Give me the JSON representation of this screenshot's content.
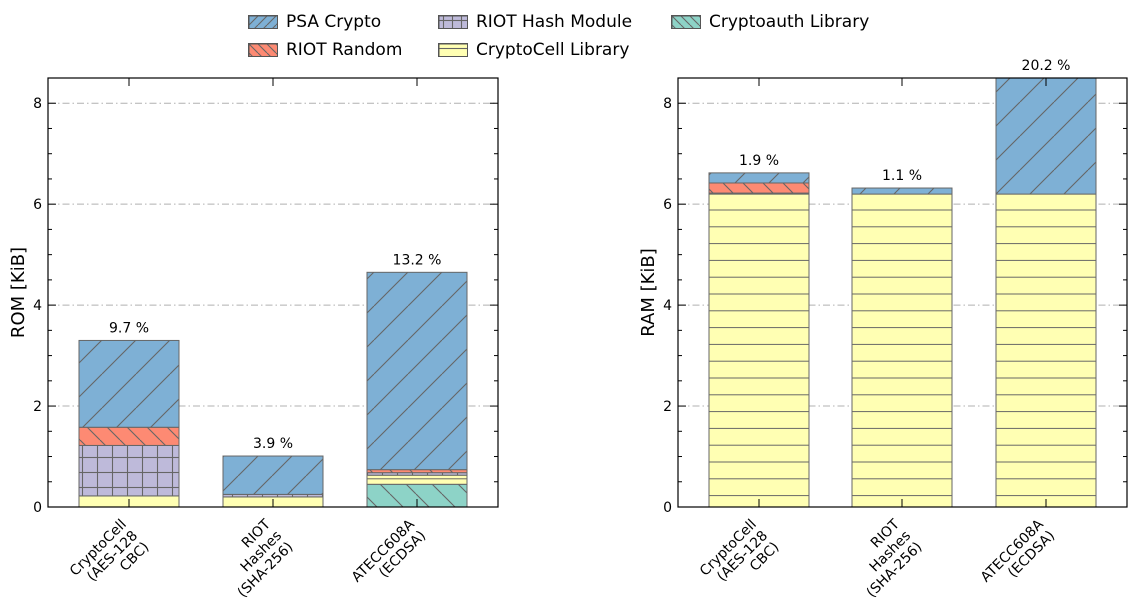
{
  "colors": {
    "psa": "#7eb0d5",
    "random": "#fd8a73",
    "hash": "#bebada",
    "cryptocell": "#ffffb3",
    "cryptoauth": "#8dd3c7"
  },
  "legend": [
    {
      "key": "psa",
      "label": "PSA Crypto",
      "pattern": "diag-up"
    },
    {
      "key": "random",
      "label": "RIOT Random",
      "pattern": "diag-down"
    },
    {
      "key": "hash",
      "label": "RIOT Hash Module",
      "pattern": "grid"
    },
    {
      "key": "cryptocell",
      "label": "CryptoCell Library",
      "pattern": "horiz"
    },
    {
      "key": "cryptoauth",
      "label": "Cryptoauth Library",
      "pattern": "diag-down"
    }
  ],
  "chart_data": [
    {
      "type": "bar",
      "stacked": true,
      "ylabel": "ROM [KiB]",
      "ylim": [
        0,
        8.5
      ],
      "yticks": [
        "0",
        "2",
        "4",
        "6",
        "8"
      ],
      "grid": "horizontal dash-dot",
      "categories": [
        "CryptoCell\n(AES-128\nCBC)",
        "RIOT\nHashes\n(SHA-256)",
        "ATECC608A\n(ECDSA)"
      ],
      "series": [
        {
          "key": "cryptoauth",
          "name": "Cryptoauth Library",
          "values": [
            0,
            0,
            0.45
          ]
        },
        {
          "key": "cryptocell",
          "name": "CryptoCell Library",
          "values": [
            0.22,
            0.2,
            0.18
          ]
        },
        {
          "key": "hash",
          "name": "RIOT Hash Module",
          "values": [
            1.0,
            0.05,
            0.05
          ]
        },
        {
          "key": "random",
          "name": "RIOT Random",
          "values": [
            0.36,
            0,
            0.06
          ]
        },
        {
          "key": "psa",
          "name": "PSA Crypto",
          "values": [
            1.72,
            0.76,
            3.91
          ]
        }
      ],
      "overhead_labels": [
        "9.7 %",
        "3.9 %",
        "13.2 %"
      ]
    },
    {
      "type": "bar",
      "stacked": true,
      "ylabel": "RAM [KiB]",
      "ylim": [
        0,
        8.5
      ],
      "yticks": [
        "0",
        "2",
        "4",
        "6",
        "8"
      ],
      "grid": "horizontal dash-dot",
      "categories": [
        "CryptoCell\n(AES-128\nCBC)",
        "RIOT\nHashes\n(SHA-256)",
        "ATECC608A\n(ECDSA)"
      ],
      "series": [
        {
          "key": "cryptoauth",
          "name": "Cryptoauth Library",
          "values": [
            0,
            0,
            0
          ]
        },
        {
          "key": "cryptocell",
          "name": "CryptoCell Library",
          "values": [
            6.2,
            6.2,
            6.2
          ]
        },
        {
          "key": "hash",
          "name": "RIOT Hash Module",
          "values": [
            0.02,
            0,
            0
          ]
        },
        {
          "key": "random",
          "name": "RIOT Random",
          "values": [
            0.2,
            0,
            0
          ]
        },
        {
          "key": "psa",
          "name": "PSA Crypto",
          "values": [
            0.2,
            0.12,
            2.3
          ]
        }
      ],
      "overhead_labels": [
        "1.9 %",
        "1.1 %",
        "20.2 %"
      ]
    }
  ]
}
